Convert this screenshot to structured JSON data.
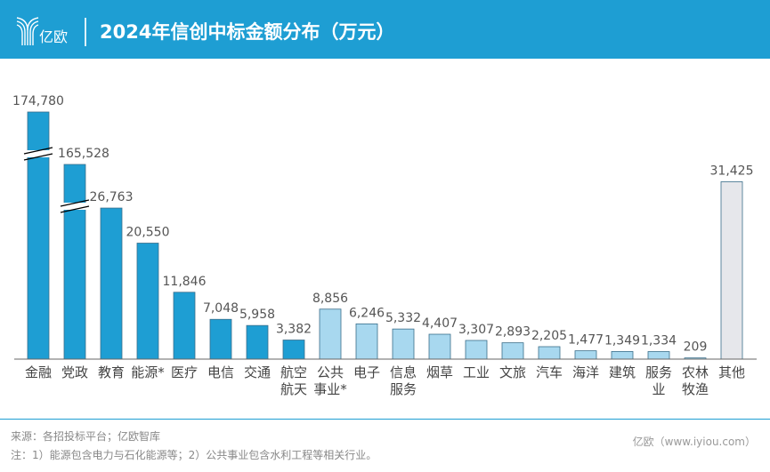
{
  "header": {
    "logo_text": "亿欧",
    "title": "2024年信创中标金额分布（万元）"
  },
  "chart_data": {
    "type": "bar",
    "title": "2024年信创中标金额分布（万元）",
    "categories": [
      [
        "金融"
      ],
      [
        "党政"
      ],
      [
        "教育"
      ],
      [
        "能源*"
      ],
      [
        "医疗"
      ],
      [
        "电信"
      ],
      [
        "交通"
      ],
      [
        "航空",
        "航天"
      ],
      [
        "公共",
        "事业*"
      ],
      [
        "电子"
      ],
      [
        "信息",
        "服务"
      ],
      [
        "烟草"
      ],
      [
        "工业"
      ],
      [
        "文旅"
      ],
      [
        "汽车"
      ],
      [
        "海洋"
      ],
      [
        "建筑"
      ],
      [
        "服务",
        "业"
      ],
      [
        "农林",
        "牧渔"
      ],
      [
        "其他"
      ]
    ],
    "values": [
      174780,
      165528,
      26763,
      20550,
      11846,
      7048,
      5958,
      3382,
      8856,
      6246,
      5332,
      4407,
      3307,
      2893,
      2205,
      1477,
      1349,
      1334,
      209,
      31425
    ],
    "value_labels": [
      "174,780",
      "165,528",
      "26,763",
      "20,550",
      "11,846",
      "7,048",
      "5,958",
      "3,382",
      "8,856",
      "6,246",
      "5,332",
      "4,407",
      "3,307",
      "2,893",
      "2,205",
      "1,477",
      "1,349",
      "1,334",
      "209",
      "31,425"
    ],
    "broken_axis_bars": [
      "金融",
      "党政"
    ],
    "colors": {
      "dark": "#1e9ed3",
      "light": "#a8d8ef",
      "other": "#e6e7eb"
    },
    "color_groups": [
      "dark",
      "dark",
      "dark",
      "dark",
      "dark",
      "dark",
      "dark",
      "dark",
      "light",
      "light",
      "light",
      "light",
      "light",
      "light",
      "light",
      "light",
      "light",
      "light",
      "light",
      "other"
    ],
    "xlabel": "",
    "ylabel": "",
    "grid": false
  },
  "footer": {
    "source": "来源：各招投标平台；亿欧智库",
    "note": "注：1）能源包含电力与石化能源等；2）公共事业包含水利工程等相关行业。",
    "credit": "亿欧（www.iyiou.com）"
  }
}
